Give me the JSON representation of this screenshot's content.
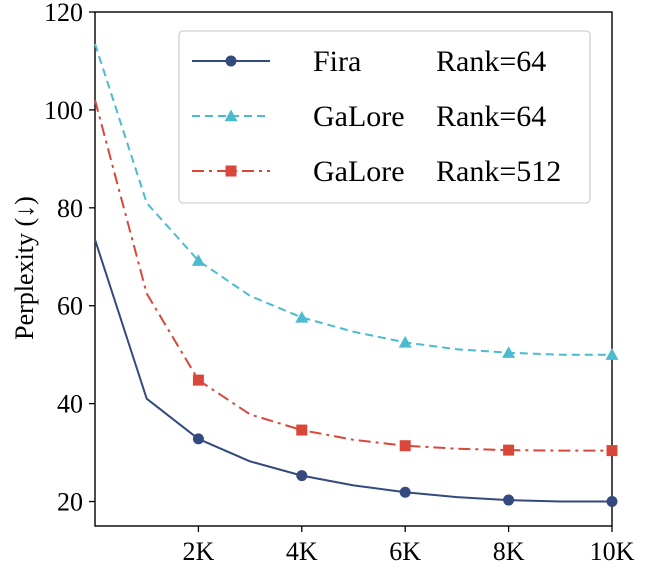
{
  "chart_data": {
    "type": "line",
    "title": "",
    "xlabel": "",
    "ylabel": "Perplexity (↓)",
    "xlim": [
      0,
      10000
    ],
    "ylim": [
      15,
      120
    ],
    "x_ticks": [
      2000,
      4000,
      6000,
      8000,
      10000
    ],
    "x_tick_labels": [
      "2K",
      "4K",
      "6K",
      "8K",
      "10K"
    ],
    "y_ticks": [
      20,
      40,
      60,
      80,
      100,
      120
    ],
    "y_tick_labels": [
      "20",
      "40",
      "60",
      "80",
      "100",
      "120"
    ],
    "grid": false,
    "legend_position": "top-right",
    "x": [
      0,
      1000,
      2000,
      3000,
      4000,
      5000,
      6000,
      7000,
      8000,
      9000,
      10000
    ],
    "series": [
      {
        "name": "Fira",
        "rank": "Rank=64",
        "color": "#34497e",
        "dash": "solid",
        "marker": "circle",
        "marker_x": [
          2000,
          4000,
          6000,
          8000,
          10000
        ],
        "values": [
          73.5,
          41,
          32.8,
          28.2,
          25.3,
          23.3,
          21.9,
          20.9,
          20.3,
          20.0,
          20.0
        ]
      },
      {
        "name": "GaLore",
        "rank": "Rank=64",
        "color": "#4bbcd0",
        "dash": "dashed",
        "marker": "triangle",
        "marker_x": [
          2000,
          4000,
          6000,
          8000,
          10000
        ],
        "values": [
          113.5,
          81,
          69.2,
          62,
          57.6,
          54.7,
          52.5,
          51.1,
          50.4,
          50.0,
          50.0
        ]
      },
      {
        "name": "GaLore",
        "rank": "Rank=512",
        "color": "#d9473a",
        "dash": "dashdot",
        "marker": "square",
        "marker_x": [
          2000,
          4000,
          6000,
          8000,
          10000
        ],
        "values": [
          102,
          62.5,
          44.8,
          37.8,
          34.6,
          32.6,
          31.4,
          30.8,
          30.5,
          30.4,
          30.4
        ]
      }
    ]
  }
}
